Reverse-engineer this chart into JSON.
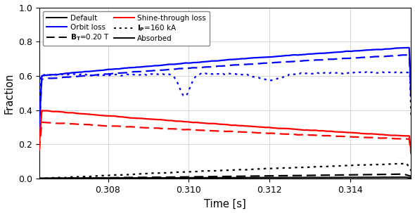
{
  "title": "",
  "xlabel": "Time [s]",
  "ylabel": "Fraction",
  "xlim": [
    0.3063,
    0.3155
  ],
  "ylim": [
    0.0,
    1.0
  ],
  "yticks": [
    0.0,
    0.2,
    0.4,
    0.6,
    0.8,
    1.0
  ],
  "xticks": [
    0.308,
    0.31,
    0.312,
    0.314
  ],
  "bg_color": "#ffffff",
  "grid_color": "#d0d0d0",
  "blue": "#0000ff",
  "red": "#ff0000",
  "black": "#000000"
}
